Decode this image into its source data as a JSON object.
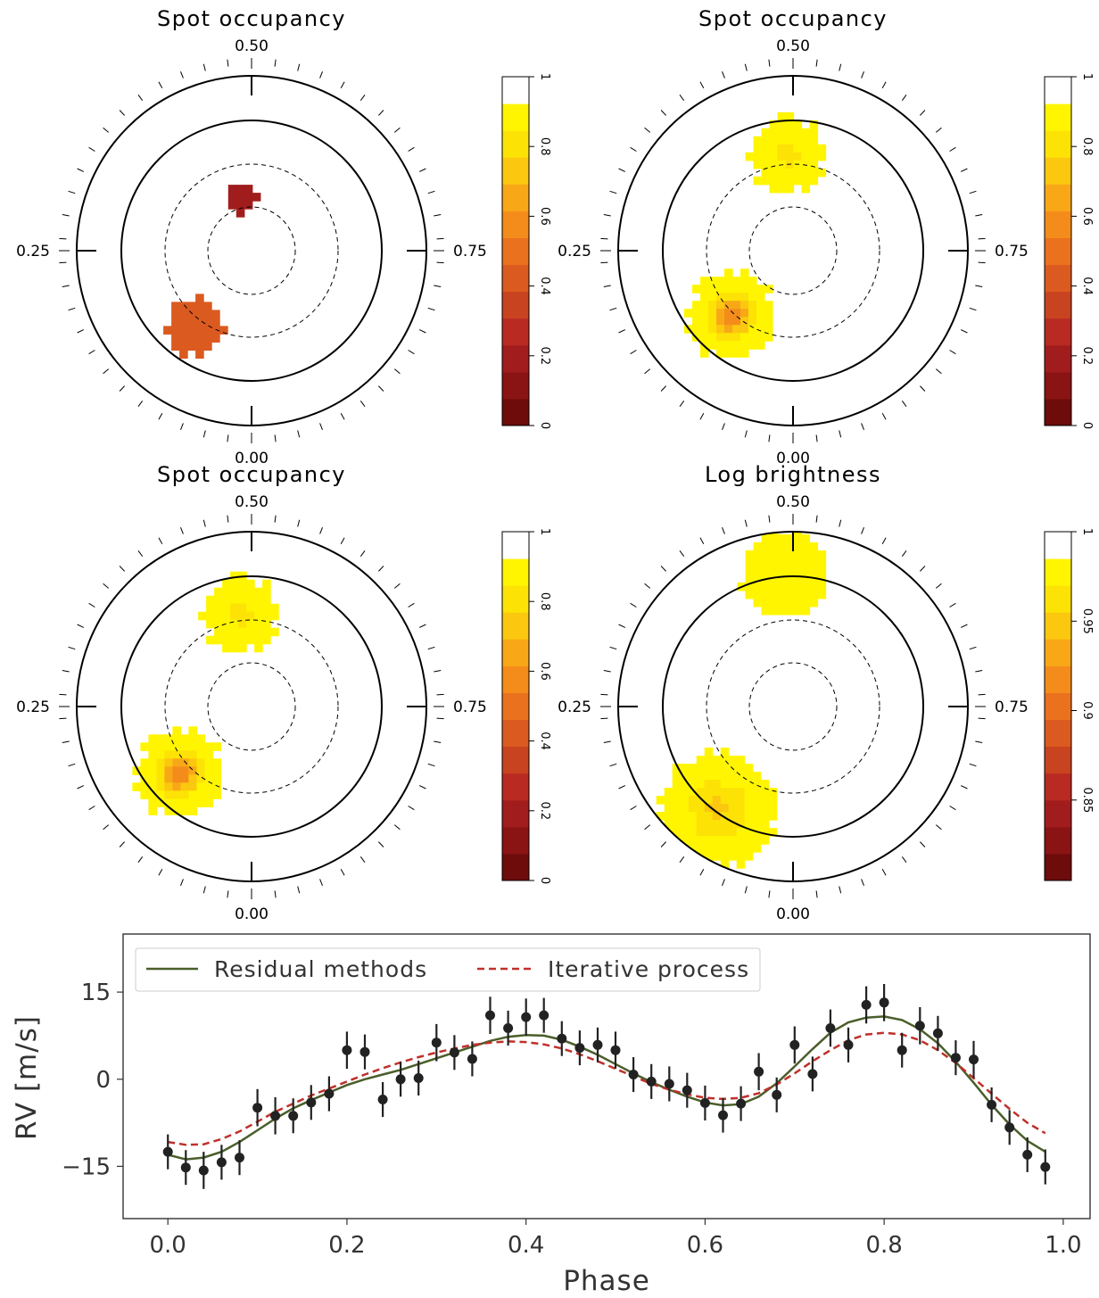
{
  "colors": {
    "occupancy_scale": [
      "#6e0b0b",
      "#8a1414",
      "#a11d1d",
      "#b82a22",
      "#c8431f",
      "#db5a20",
      "#ea721e",
      "#f48c1b",
      "#f8a817",
      "#fbc70f",
      "#fde206",
      "#fff500",
      "#ffffff"
    ],
    "brightness_scale": [
      "#6e0b0b",
      "#8a1414",
      "#a11d1d",
      "#b82a22",
      "#c8431f",
      "#db5a20",
      "#ea721e",
      "#f48c1b",
      "#f8a817",
      "#fbc70f",
      "#fde206",
      "#fff500",
      "#ffffff"
    ],
    "residual_line": "#4a5e2a",
    "iterative_line": "#c0302a",
    "points": "#222222"
  },
  "maps": [
    {
      "title": "Spot occupancy",
      "phase_labels": {
        "top": "0.50",
        "left": "0.25",
        "right": "0.75",
        "bottom": "0.00"
      },
      "colorbar_ticks": [
        "1",
        "0.8",
        "0.6",
        "0.4",
        "0.2",
        "0"
      ],
      "spots": [
        {
          "phase": 0.47,
          "colatitude_deg": 37,
          "radius_deg": 12,
          "core_level": 2,
          "edge_level": 2
        },
        {
          "phase": 0.1,
          "colatitude_deg": 65,
          "radius_deg": 20,
          "core_level": 5,
          "edge_level": 5
        }
      ]
    },
    {
      "title": "Spot occupancy",
      "phase_labels": {
        "top": "0.50",
        "left": "0.25",
        "right": "0.75",
        "bottom": "0.00"
      },
      "colorbar_ticks": [
        "1",
        "0.8",
        "0.6",
        "0.4",
        "0.2",
        "0"
      ],
      "spots": [
        {
          "phase": 0.49,
          "colatitude_deg": 67,
          "radius_deg": 26,
          "core_level": 10,
          "edge_level": 11
        },
        {
          "phase": 0.12,
          "colatitude_deg": 62,
          "radius_deg": 30,
          "core_level": 6,
          "edge_level": 11
        }
      ]
    },
    {
      "title": "Spot occupancy",
      "phase_labels": {
        "top": "0.50",
        "left": "0.25",
        "right": "0.75",
        "bottom": "0.00"
      },
      "colorbar_ticks": [
        "1",
        "0.8",
        "0.6",
        "0.4",
        "0.2",
        "0"
      ],
      "spots": [
        {
          "phase": 0.48,
          "colatitude_deg": 65,
          "radius_deg": 26,
          "core_level": 10,
          "edge_level": 11
        },
        {
          "phase": 0.13,
          "colatitude_deg": 68,
          "radius_deg": 30,
          "core_level": 6,
          "edge_level": 11
        }
      ]
    },
    {
      "title": "Log brightness",
      "phase_labels": {
        "top": "0.50",
        "left": "0.25",
        "right": "0.75",
        "bottom": "0.00"
      },
      "colorbar_ticks": [
        "1",
        "0.95",
        "0.9",
        "0.85"
      ],
      "spots": [
        {
          "phase": 0.49,
          "colatitude_deg": 92,
          "radius_deg": 30,
          "core_level": 11,
          "edge_level": 11
        },
        {
          "phase": 0.1,
          "colatitude_deg": 88,
          "radius_deg": 40,
          "core_level": 9,
          "edge_level": 11
        }
      ]
    }
  ],
  "chart_data": {
    "type": "line",
    "xlabel": "Phase",
    "ylabel": "RV [m/s]",
    "xlim": [
      -0.05,
      1.03
    ],
    "ylim": [
      -24,
      25
    ],
    "xticks": [
      "0.0",
      "0.2",
      "0.4",
      "0.6",
      "0.8",
      "1.0"
    ],
    "yticks": [
      "15",
      "0",
      "−15"
    ],
    "legend_position": "top-left",
    "series": [
      {
        "name": "Residual methods",
        "style": "solid",
        "x": [
          0.0,
          0.02,
          0.04,
          0.06,
          0.08,
          0.1,
          0.12,
          0.14,
          0.16,
          0.18,
          0.2,
          0.22,
          0.24,
          0.26,
          0.28,
          0.3,
          0.32,
          0.34,
          0.36,
          0.38,
          0.4,
          0.42,
          0.44,
          0.46,
          0.48,
          0.5,
          0.52,
          0.54,
          0.56,
          0.58,
          0.6,
          0.62,
          0.64,
          0.66,
          0.68,
          0.7,
          0.72,
          0.74,
          0.76,
          0.78,
          0.8,
          0.82,
          0.84,
          0.86,
          0.88,
          0.9,
          0.92,
          0.94,
          0.96,
          0.98
        ],
        "y": [
          -13.0,
          -13.8,
          -13.5,
          -12.5,
          -10.8,
          -8.8,
          -6.8,
          -5.0,
          -3.6,
          -2.3,
          -1.0,
          0.0,
          0.8,
          1.6,
          2.6,
          3.6,
          4.6,
          5.6,
          6.6,
          7.3,
          7.6,
          7.5,
          6.8,
          5.6,
          4.2,
          2.6,
          1.0,
          -0.5,
          -1.8,
          -3.0,
          -4.0,
          -4.5,
          -4.3,
          -3.0,
          -0.7,
          2.2,
          5.2,
          8.0,
          9.8,
          10.6,
          10.8,
          10.2,
          8.6,
          6.2,
          3.0,
          -0.6,
          -4.4,
          -7.8,
          -10.6,
          -12.5
        ]
      },
      {
        "name": "Iterative process",
        "style": "dashed",
        "x": [
          0.0,
          0.02,
          0.04,
          0.06,
          0.08,
          0.1,
          0.12,
          0.14,
          0.16,
          0.18,
          0.2,
          0.22,
          0.24,
          0.26,
          0.28,
          0.3,
          0.32,
          0.34,
          0.36,
          0.38,
          0.4,
          0.42,
          0.44,
          0.46,
          0.48,
          0.5,
          0.52,
          0.54,
          0.56,
          0.58,
          0.6,
          0.62,
          0.64,
          0.66,
          0.68,
          0.7,
          0.72,
          0.74,
          0.76,
          0.78,
          0.8,
          0.82,
          0.84,
          0.86,
          0.88,
          0.9,
          0.92,
          0.94,
          0.96,
          0.98
        ],
        "y": [
          -10.8,
          -11.3,
          -11.2,
          -10.3,
          -9.0,
          -7.3,
          -5.6,
          -4.2,
          -2.8,
          -1.6,
          -0.4,
          0.8,
          1.9,
          2.9,
          3.8,
          4.6,
          5.3,
          5.9,
          6.3,
          6.5,
          6.4,
          6.0,
          5.3,
          4.3,
          3.1,
          1.8,
          0.5,
          -0.8,
          -1.8,
          -2.6,
          -3.2,
          -3.4,
          -3.2,
          -2.4,
          -0.9,
          1.0,
          3.1,
          5.0,
          6.7,
          7.7,
          8.0,
          7.7,
          6.7,
          5.0,
          2.8,
          0.2,
          -2.5,
          -5.1,
          -7.5,
          -9.3
        ]
      }
    ],
    "points": {
      "x": [
        0.0,
        0.02,
        0.04,
        0.06,
        0.08,
        0.1,
        0.12,
        0.14,
        0.16,
        0.18,
        0.2,
        0.22,
        0.24,
        0.26,
        0.28,
        0.3,
        0.32,
        0.34,
        0.36,
        0.38,
        0.4,
        0.42,
        0.44,
        0.46,
        0.48,
        0.5,
        0.52,
        0.54,
        0.56,
        0.58,
        0.6,
        0.62,
        0.64,
        0.66,
        0.68,
        0.7,
        0.72,
        0.74,
        0.76,
        0.78,
        0.8,
        0.82,
        0.84,
        0.86,
        0.88,
        0.9,
        0.92,
        0.94,
        0.96,
        0.98
      ],
      "y": [
        -12.5,
        -15.2,
        -15.7,
        -14.3,
        -13.5,
        -4.9,
        -6.3,
        -6.3,
        -4.0,
        -2.5,
        5.0,
        4.7,
        -3.5,
        0.0,
        0.2,
        6.3,
        4.6,
        3.5,
        11.0,
        8.8,
        10.7,
        11.0,
        7.0,
        5.4,
        5.9,
        5.0,
        0.8,
        -0.4,
        -0.8,
        -1.9,
        -4.1,
        -6.2,
        -4.2,
        1.3,
        -2.7,
        5.9,
        0.9,
        8.8,
        5.9,
        12.8,
        13.2,
        5.0,
        9.2,
        7.9,
        3.7,
        3.4,
        -4.4,
        -8.3,
        -13.0,
        -15.1
      ],
      "err": [
        3,
        3,
        3.2,
        3,
        3,
        3.2,
        3.2,
        3,
        3,
        3,
        3.2,
        3,
        3,
        3,
        3,
        3.2,
        3,
        3,
        3.2,
        3,
        3.2,
        3,
        3,
        3,
        3,
        3.2,
        3,
        3,
        3,
        3,
        3,
        3,
        3,
        3.2,
        3,
        3.2,
        3,
        3.2,
        3,
        3.2,
        3.2,
        3,
        3.2,
        3,
        3,
        3.2,
        3,
        3,
        3,
        3
      ]
    }
  }
}
